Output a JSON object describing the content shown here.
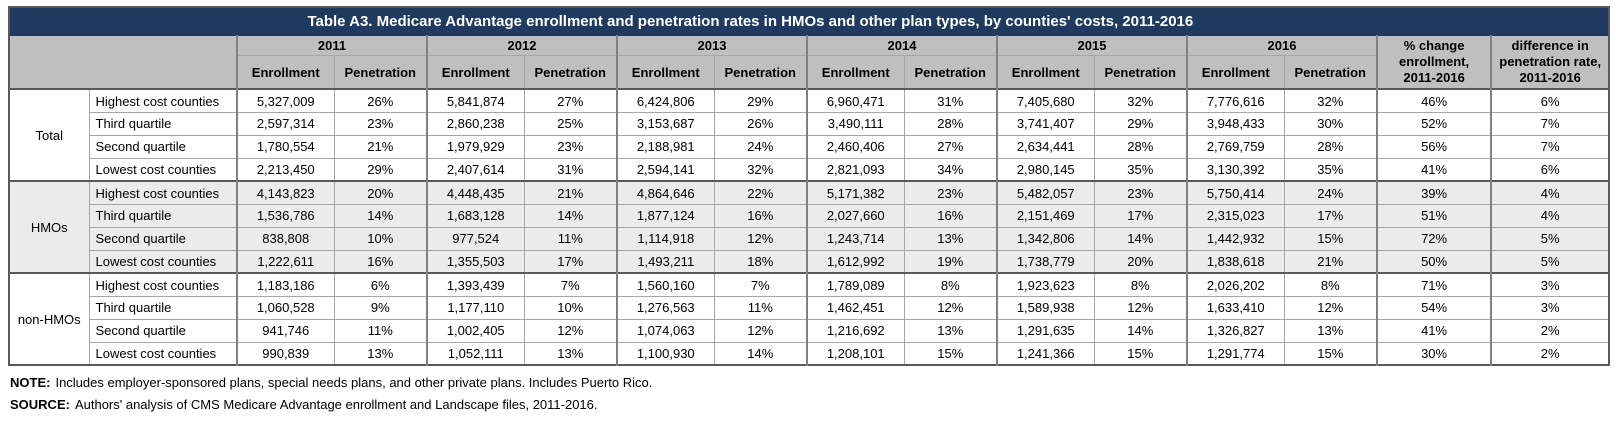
{
  "title": "Table A3. Medicare Advantage enrollment and penetration rates in HMOs and other plan types, by counties' costs, 2011-2016",
  "chart_data": {
    "type": "table",
    "title": "Table A3. Medicare Advantage enrollment and penetration rates in HMOs and other plan types, by counties' costs, 2011-2016",
    "year_columns": [
      "2011",
      "2012",
      "2013",
      "2014",
      "2015",
      "2016"
    ],
    "sub_columns": [
      "Enrollment",
      "Penetration"
    ],
    "summary_columns": [
      "% change enrollment, 2011-2016",
      "difference in penetration rate, 2011-2016"
    ],
    "row_groups": [
      {
        "label": "Total",
        "shaded": false,
        "rows": [
          {
            "label": "Highest cost counties",
            "values": [
              "5,327,009",
              "26%",
              "5,841,874",
              "27%",
              "6,424,806",
              "29%",
              "6,960,471",
              "31%",
              "7,405,680",
              "32%",
              "7,776,616",
              "32%",
              "46%",
              "6%"
            ]
          },
          {
            "label": "Third quartile",
            "values": [
              "2,597,314",
              "23%",
              "2,860,238",
              "25%",
              "3,153,687",
              "26%",
              "3,490,111",
              "28%",
              "3,741,407",
              "29%",
              "3,948,433",
              "30%",
              "52%",
              "7%"
            ]
          },
          {
            "label": "Second quartile",
            "values": [
              "1,780,554",
              "21%",
              "1,979,929",
              "23%",
              "2,188,981",
              "24%",
              "2,460,406",
              "27%",
              "2,634,441",
              "28%",
              "2,769,759",
              "28%",
              "56%",
              "7%"
            ]
          },
          {
            "label": "Lowest cost counties",
            "values": [
              "2,213,450",
              "29%",
              "2,407,614",
              "31%",
              "2,594,141",
              "32%",
              "2,821,093",
              "34%",
              "2,980,145",
              "35%",
              "3,130,392",
              "35%",
              "41%",
              "6%"
            ]
          }
        ]
      },
      {
        "label": "HMOs",
        "shaded": true,
        "rows": [
          {
            "label": "Highest cost counties",
            "values": [
              "4,143,823",
              "20%",
              "4,448,435",
              "21%",
              "4,864,646",
              "22%",
              "5,171,382",
              "23%",
              "5,482,057",
              "23%",
              "5,750,414",
              "24%",
              "39%",
              "4%"
            ]
          },
          {
            "label": "Third quartile",
            "values": [
              "1,536,786",
              "14%",
              "1,683,128",
              "14%",
              "1,877,124",
              "16%",
              "2,027,660",
              "16%",
              "2,151,469",
              "17%",
              "2,315,023",
              "17%",
              "51%",
              "4%"
            ]
          },
          {
            "label": "Second quartile",
            "values": [
              "838,808",
              "10%",
              "977,524",
              "11%",
              "1,114,918",
              "12%",
              "1,243,714",
              "13%",
              "1,342,806",
              "14%",
              "1,442,932",
              "15%",
              "72%",
              "5%"
            ]
          },
          {
            "label": "Lowest cost counties",
            "values": [
              "1,222,611",
              "16%",
              "1,355,503",
              "17%",
              "1,493,211",
              "18%",
              "1,612,992",
              "19%",
              "1,738,779",
              "20%",
              "1,838,618",
              "21%",
              "50%",
              "5%"
            ]
          }
        ]
      },
      {
        "label": "non-HMOs",
        "shaded": false,
        "rows": [
          {
            "label": "Highest cost counties",
            "values": [
              "1,183,186",
              "6%",
              "1,393,439",
              "7%",
              "1,560,160",
              "7%",
              "1,789,089",
              "8%",
              "1,923,623",
              "8%",
              "2,026,202",
              "8%",
              "71%",
              "3%"
            ]
          },
          {
            "label": "Third quartile",
            "values": [
              "1,060,528",
              "9%",
              "1,177,110",
              "10%",
              "1,276,563",
              "11%",
              "1,462,451",
              "12%",
              "1,589,938",
              "12%",
              "1,633,410",
              "12%",
              "54%",
              "3%"
            ]
          },
          {
            "label": "Second quartile",
            "values": [
              "941,746",
              "11%",
              "1,002,405",
              "12%",
              "1,074,063",
              "12%",
              "1,216,692",
              "13%",
              "1,291,635",
              "14%",
              "1,326,827",
              "13%",
              "41%",
              "2%"
            ]
          },
          {
            "label": "Lowest cost counties",
            "values": [
              "990,839",
              "13%",
              "1,052,111",
              "13%",
              "1,100,930",
              "14%",
              "1,208,101",
              "15%",
              "1,241,366",
              "15%",
              "1,291,774",
              "15%",
              "30%",
              "2%"
            ]
          }
        ]
      }
    ]
  },
  "notes": {
    "note_label": "NOTE:",
    "note_text": "Includes employer-sponsored plans, special needs plans, and other private plans.  Includes Puerto Rico.",
    "source_label": "SOURCE:",
    "source_text": "Authors' analysis of CMS Medicare Advantage enrollment and Landscape files, 2011-2016."
  },
  "colors": {
    "title_bar": "#1f3a5f",
    "title_text": "#ffffff",
    "header_bg": "#bfbfbf",
    "shaded_group_bg": "#ebebeb",
    "border_dark": "#595959",
    "border_mid": "#808080",
    "border_light": "#a6a6a6"
  }
}
